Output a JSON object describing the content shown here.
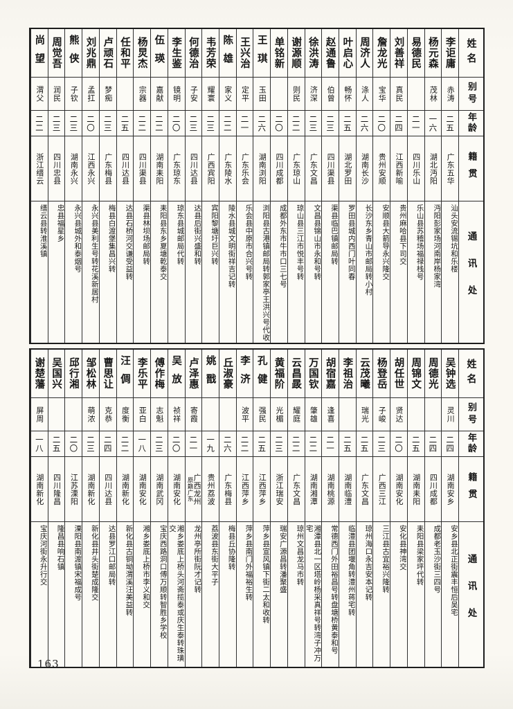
{
  "page": {
    "number": "163"
  },
  "header_labels": {
    "name": "姓名",
    "alias": "别号",
    "age": "年龄",
    "native": "籍贯",
    "address": "通讯处"
  },
  "tables": [
    {
      "position": "top",
      "entries": [
        {
          "name": "李讵庸",
          "alias": "赤涛",
          "age": "二五",
          "native": "广东五华",
          "address": "汕头安流锡坑和乐楼"
        },
        {
          "name": "杨元森",
          "alias": "茂林",
          "age": "一六",
          "native": "湖北沔阳",
          "address": "沔阳彭家场河南岸杨家湾"
        },
        {
          "name": "易德民",
          "alias": "",
          "age": "二一",
          "native": "四川乐山",
          "address": "乐山县苏稽场福禄栈号"
        },
        {
          "name": "刘善祥",
          "alias": "真民",
          "age": "二四",
          "native": "江西新喻",
          "address": "贵州麻哈县下司交"
        },
        {
          "name": "詹龙光",
          "alias": "宝华",
          "age": "二〇",
          "native": "贵州安顺",
          "address": "安顺县大箭导永兴隆交"
        },
        {
          "name": "周济人",
          "alias": "涤人",
          "age": "二六",
          "native": "湖南长沙",
          "address": "长沙东乡青山市邮局转小村"
        },
        {
          "name": "叶启心",
          "alias": "畅怀",
          "age": "二五",
          "native": "湖北罗田",
          "address": "罗田县城内西门叶同春"
        },
        {
          "name": "赵通鲁",
          "alias": "伯曾",
          "age": "二三",
          "native": "四川渠县",
          "address": "渠县临巴镇邮局转"
        },
        {
          "name": "徐洪涛",
          "alias": "济深",
          "age": "二三",
          "native": "广东文昌",
          "address": "文昌县锦山市永和号转"
        },
        {
          "name": "谢源顺",
          "alias": "则民",
          "age": "二二",
          "native": "广东琼山",
          "address": "琼山县三江市悦丰号转"
        },
        {
          "name": "单铭新",
          "alias": "",
          "age": "二〇",
          "native": "四川成都",
          "address": "成都外东市牛市口三七号"
        },
        {
          "name": "王琪",
          "alias": "玉田",
          "age": "二六",
          "native": "湖南浏阳",
          "address": "浏阳县古港镇邮局转郭家亭王洪兴号代收"
        },
        {
          "name": "王兴治",
          "alias": "定平",
          "age": "二一",
          "native": "广东乐会",
          "address": "乐会县中原市合兴号转"
        },
        {
          "name": "陈雄",
          "alias": "家义",
          "age": "二二",
          "native": "广东陵水",
          "address": "陵水县城文明街祥吉记转"
        },
        {
          "name": "韦芳荣",
          "alias": "耀寰",
          "age": "二三",
          "native": "广西宾阳",
          "address": "宾阳黎塘圩巨兴转"
        },
        {
          "name": "何德治",
          "alias": "子安",
          "age": "二三",
          "native": "四川达县",
          "address": "达县后街兴盛和转"
        },
        {
          "name": "李生鉴",
          "alias": "镜明",
          "age": "二〇",
          "native": "广东琼东",
          "address": "琼东县城邮局代转"
        },
        {
          "name": "伍瑛",
          "alias": "嘉献",
          "age": "二二",
          "native": "湖南耒阳",
          "address": "耒阳县东乡夏塘乾泰交"
        },
        {
          "name": "杨炅杰",
          "alias": "宗器",
          "age": "二二",
          "native": "四川渠县",
          "address": "渠县林坝场邮局转"
        },
        {
          "name": "任和平",
          "alias": "",
          "age": "二五",
          "native": "四川达县",
          "address": "达县石桥河交谦受益转"
        },
        {
          "name": "卢顽石",
          "alias": "梦痴",
          "age": "二三",
          "native": "广东梅县",
          "address": "梅县白渡堡集昌兴转"
        },
        {
          "name": "刘兆鼎",
          "alias": "孟扛",
          "age": "二〇",
          "native": "江西永兴",
          "address": "永兴县美利生号转花溪新居村"
        },
        {
          "name": "熊侠",
          "alias": "子钦",
          "age": "二三",
          "native": "湖南永兴",
          "address": "永兴县城外和泰烟号"
        },
        {
          "name": "周觉吾",
          "alias": "润民",
          "age": "二三",
          "native": "四川忠县",
          "address": "忠县福星乡"
        },
        {
          "name": "尚望",
          "alias": "渭父",
          "age": "二二",
          "native": "浙江缙云",
          "address": "缙云县转淮溪镇"
        }
      ]
    },
    {
      "position": "bottom",
      "entries": [
        {
          "name": "吴钟选",
          "alias": "灵川",
          "age": "二四",
          "native": "湖南安乡",
          "address": "安乡县北正街震丰恒后吴宅"
        },
        {
          "name": "周德光",
          "alias": "",
          "age": "二四",
          "native": "四川成都",
          "address": "成都老玉沙街三四号"
        },
        {
          "name": "周锦文",
          "alias": "",
          "age": "二五",
          "native": "湖南耒阳",
          "address": "耒阳县梁家坪代转"
        },
        {
          "name": "胡任世",
          "alias": "贤达",
          "age": "二〇",
          "native": "湖南安化",
          "address": "安化县神湾交"
        },
        {
          "name": "杨登岳",
          "alias": "子峻",
          "age": "二三",
          "native": "广西三江",
          "address": "三江县古宜裕兴隆转"
        },
        {
          "name": "云茂曦",
          "alias": "瑞光",
          "age": "二五",
          "native": "广东文昌",
          "address": "琼州海口永吉安本记转"
        },
        {
          "name": "李祖治",
          "alias": "",
          "age": "二五",
          "native": "湖南临澧",
          "address": "临澧县团堰角转澧州蒋宅转"
        },
        {
          "name": "胡宿嘉",
          "alias": "逢喜",
          "age": "二一",
          "native": "湖南桃源",
          "address": "常德西门外田裕昌号转盘塘桥黄泰和号"
        },
        {
          "name": "万国钦",
          "alias": "肇雄",
          "age": "二二",
          "native": "湖南湘潭",
          "address": "湘潭县北一区塔岭杨采真祥号转湾子冲万宅"
        },
        {
          "name": "云昌晸",
          "alias": "耀庭",
          "age": "二二",
          "native": "广东文昌",
          "address": "琼州文昌龙马市转"
        },
        {
          "name": "黄福阶",
          "alias": "光楣",
          "age": "二三",
          "native": "浙江瑞安",
          "address": "瑞安广源昌转潘聚盛"
        },
        {
          "name": "孔健",
          "alias": "强民",
          "age": "二五",
          "native": "江西萍乡",
          "address": "萍乡县宣风镇下街二太和收转"
        },
        {
          "name": "李济",
          "alias": "波平",
          "age": "二二",
          "native": "江西萍乡",
          "address": "萍乡县南门外福裕生转"
        },
        {
          "name": "丘淑豪",
          "alias": "",
          "age": "二六",
          "native": "广东梅县",
          "address": "梅县丘协隆转"
        },
        {
          "name": "姚戬",
          "alias": "",
          "age": "一九",
          "native": "贵州荔波",
          "address": "荔波县东街大平子"
        },
        {
          "name": "卢泽惠",
          "alias": "寄霞",
          "age": "二一",
          "native": "广西龙州",
          "native_note": "原籍广东",
          "address": "龙州亭所街阮才记转"
        },
        {
          "name": "吴放",
          "alias": "祯祥",
          "age": "二〇",
          "native": "湖南安化",
          "address": "湘乡娄底上桥头河斋揽泰或庆生泰转珠璜交"
        },
        {
          "name": "傅作梅",
          "alias": "志魁",
          "age": "二三",
          "native": "湖南武冈",
          "address": "宝庆西路洞口傅万顺转智胜乡学校"
        },
        {
          "name": "李乐平",
          "alias": "亚白",
          "age": "一八",
          "native": "湖南安化",
          "address": "湘乡娄底上桥市李义和交"
        },
        {
          "name": "汪倜",
          "alias": "度衡",
          "age": "二二",
          "native": "湖南新化",
          "address": "新化县古铜坳渭溪汪美益转"
        },
        {
          "name": "曹思让",
          "alias": "克恭",
          "age": "二四",
          "native": "四川达县",
          "address": "达县罗江口邮局转"
        },
        {
          "name": "邹松林",
          "alias": "萌浓",
          "age": "二三",
          "native": "湖南新化",
          "address": "新化县井头街楚成隆交"
        },
        {
          "name": "邱行湘",
          "alias": "",
          "age": "二〇",
          "native": "江苏溧阳",
          "address": "溧阳县南渡镇宋福成号"
        },
        {
          "name": "吴国兴",
          "alias": "",
          "age": "二五",
          "native": "四川隆昌",
          "address": "隆昌县响石镇"
        },
        {
          "name": "谢楚藩",
          "alias": "屏周",
          "age": "一八",
          "native": "湖南新化",
          "address": "宝庆河街永升行交"
        }
      ]
    }
  ]
}
